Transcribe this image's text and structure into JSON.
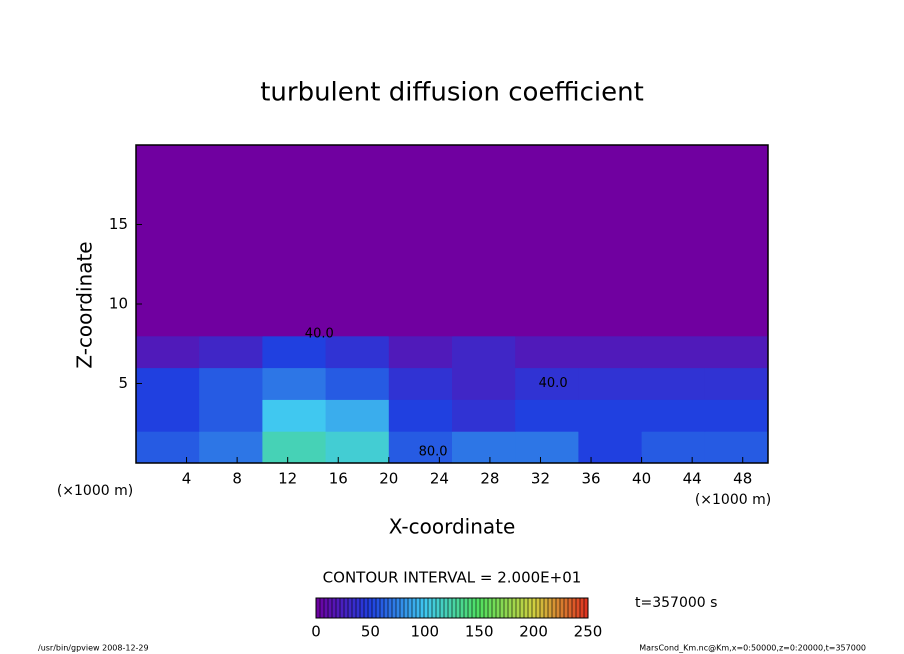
{
  "chart_data": {
    "type": "heatmap",
    "title": "turbulent diffusion coefficient",
    "xlabel": "X-coordinate",
    "ylabel": "Z-coordinate",
    "x_unit_label": "(×1000 m)",
    "x_edges": [
      0,
      5,
      10,
      15,
      20,
      25,
      30,
      35,
      40,
      45,
      50
    ],
    "y_edges": [
      0,
      2,
      4,
      6,
      8,
      20
    ],
    "values": [
      [
        60,
        70,
        120,
        110,
        60,
        70,
        70,
        50,
        60,
        60
      ],
      [
        50,
        60,
        100,
        90,
        50,
        40,
        50,
        50,
        50,
        50
      ],
      [
        50,
        60,
        70,
        60,
        40,
        30,
        40,
        40,
        40,
        40
      ],
      [
        20,
        30,
        50,
        40,
        20,
        30,
        20,
        20,
        20,
        20
      ],
      [
        0,
        0,
        0,
        0,
        0,
        0,
        0,
        0,
        0,
        0
      ]
    ],
    "xlim": [
      0,
      50
    ],
    "ylim": [
      0,
      20
    ],
    "xticks": [
      4,
      8,
      12,
      16,
      20,
      24,
      28,
      32,
      36,
      40,
      44,
      48
    ],
    "yticks": [
      5,
      10,
      15
    ],
    "annotations": [
      {
        "text": "40.0",
        "x": 14.5,
        "y": 8.1
      },
      {
        "text": "40.0",
        "x": 33,
        "y": 5
      },
      {
        "text": "80.0",
        "x": 23.5,
        "y": 0.7
      }
    ],
    "contour_interval_label": "CONTOUR INTERVAL = 2.000E+01",
    "time_label": "t=357000 s",
    "clim": [
      0,
      250
    ],
    "colorbar_ticks": [
      0,
      50,
      100,
      150,
      200,
      250
    ],
    "colormap": [
      "#7000a0",
      "#2040e0",
      "#40c8f0",
      "#50e060",
      "#d0d040",
      "#e03020"
    ],
    "footer_left": "/usr/bin/gpview  2008-12-29",
    "footer_right": "MarsCond_Km.nc@Km,x=0:50000,z=0:20000,t=357000"
  }
}
